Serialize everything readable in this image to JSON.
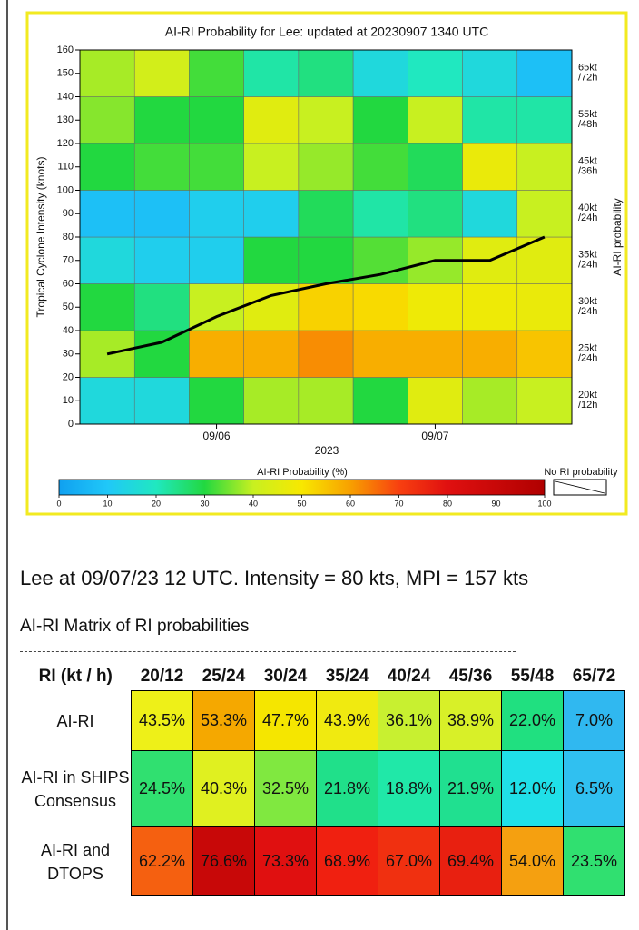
{
  "chart_data": {
    "type": "heatmap",
    "title": "AI-RI Probability for Lee: updated at 20230907 1340 UTC",
    "xlabel": "2023",
    "ylabel": "Tropical Cyclone Intensity (knots)",
    "y2label": "AI-RI probability",
    "categories": [
      null,
      null,
      "09/06",
      null,
      null,
      null,
      "09/07",
      null,
      null
    ],
    "ylim": [
      0,
      160
    ],
    "yticks": [
      0,
      10,
      20,
      30,
      40,
      50,
      60,
      70,
      80,
      90,
      100,
      110,
      120,
      130,
      140,
      150,
      160
    ],
    "row_bins": [
      0,
      20,
      40,
      60,
      80,
      100,
      120,
      140,
      160
    ],
    "row_labels": [
      [
        "20kt",
        "/12h"
      ],
      [
        "25kt",
        "/24h"
      ],
      [
        "30kt",
        "/24h"
      ],
      [
        "35kt",
        "/24h"
      ],
      [
        "40kt",
        "/24h"
      ],
      [
        "45kt",
        "/36h"
      ],
      [
        "55kt",
        "/48h"
      ],
      [
        "65kt",
        "/72h"
      ]
    ],
    "z": [
      [
        15,
        15,
        30,
        38,
        38,
        30,
        45,
        38,
        40
      ],
      [
        38,
        30,
        58,
        58,
        62,
        58,
        58,
        58,
        55
      ],
      [
        30,
        25,
        40,
        45,
        53,
        52,
        48,
        48,
        47
      ],
      [
        15,
        12,
        12,
        30,
        30,
        33,
        37,
        45,
        45
      ],
      [
        8,
        8,
        12,
        12,
        28,
        22,
        25,
        15,
        40
      ],
      [
        30,
        32,
        32,
        40,
        37,
        32,
        28,
        47,
        40
      ],
      [
        36,
        30,
        30,
        45,
        40,
        30,
        40,
        22,
        22
      ],
      [
        38,
        42,
        32,
        22,
        25,
        15,
        20,
        15,
        8
      ]
    ],
    "line": {
      "color": "#000000",
      "values": [
        30,
        35,
        46,
        55,
        60,
        64,
        70,
        70,
        80
      ]
    },
    "colorscale": [
      [
        0,
        "#10a0f0"
      ],
      [
        10,
        "#20c8f8"
      ],
      [
        20,
        "#20e8c0"
      ],
      [
        30,
        "#22d840"
      ],
      [
        40,
        "#c8f020"
      ],
      [
        50,
        "#f8e800"
      ],
      [
        60,
        "#f8a000"
      ],
      [
        70,
        "#f84010"
      ],
      [
        80,
        "#e01010"
      ],
      [
        100,
        "#b00000"
      ]
    ],
    "colorbar": {
      "label": "AI-RI Probability (%)",
      "lim": [
        0,
        100
      ],
      "ticks": [
        0,
        10,
        20,
        30,
        40,
        50,
        60,
        70,
        80,
        90,
        100
      ],
      "no_data_label": "No RI probability"
    }
  },
  "summary": "Lee at 09/07/23 12 UTC. Intensity = 80 kts, MPI = 157 kts",
  "matrix_title": "AI-RI Matrix of RI probabilities",
  "table": {
    "header": [
      "RI (kt / h)",
      "20/12",
      "25/24",
      "30/24",
      "35/24",
      "40/24",
      "45/36",
      "55/48",
      "65/72"
    ],
    "rows": [
      {
        "label": "AI-RI",
        "cells": [
          "43.5%",
          "53.3%",
          "47.7%",
          "43.9%",
          "36.1%",
          "38.9%",
          "22.0%",
          "7.0%"
        ],
        "colors": [
          "#eef018",
          "#f5a800",
          "#f5e600",
          "#f0ea10",
          "#c8f030",
          "#d8f028",
          "#20e080",
          "#30b8f0"
        ]
      },
      {
        "label": "AI-RI in SHIPS Consensus",
        "cells": [
          "24.5%",
          "40.3%",
          "32.5%",
          "21.8%",
          "18.8%",
          "21.9%",
          "12.0%",
          "6.5%"
        ],
        "colors": [
          "#30e070",
          "#e0f020",
          "#80e840",
          "#20e08a",
          "#20e8a8",
          "#20e090",
          "#20e0e8",
          "#30c0f0"
        ]
      },
      {
        "label": "AI-RI and DTOPS",
        "cells": [
          "62.2%",
          "76.6%",
          "73.3%",
          "68.9%",
          "67.0%",
          "69.4%",
          "54.0%",
          "23.5%"
        ],
        "colors": [
          "#f56010",
          "#c80808",
          "#e01010",
          "#f02010",
          "#f03010",
          "#e82010",
          "#f5a010",
          "#30e070"
        ]
      }
    ]
  }
}
